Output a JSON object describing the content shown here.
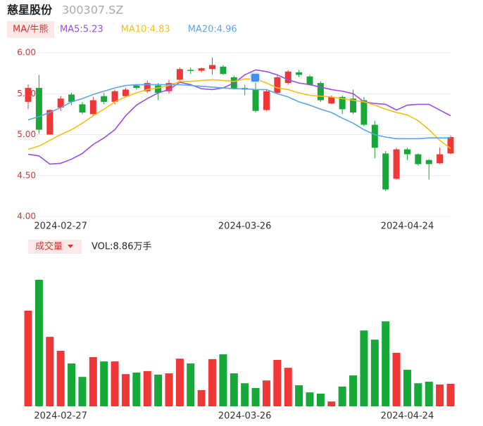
{
  "chart_data": {
    "type": "candlestick",
    "title": "慈星股份",
    "subtitle": "300307.SZ",
    "ma_button": "MA/牛熊",
    "up_color": "#f03737",
    "down_color": "#17a83a",
    "grid": true,
    "categories": [
      null,
      null,
      null,
      "2024-02-27",
      null,
      null,
      null,
      null,
      null,
      null,
      null,
      null,
      null,
      null,
      null,
      null,
      null,
      null,
      null,
      null,
      "2024-03-26",
      null,
      null,
      null,
      null,
      null,
      null,
      null,
      null,
      null,
      null,
      null,
      null,
      null,
      null,
      "2024-04-24",
      null,
      null,
      null,
      null
    ],
    "open": [
      5.4,
      5.57,
      5.0,
      5.33,
      5.49,
      5.37,
      5.25,
      5.47,
      5.4,
      5.47,
      5.6,
      5.53,
      5.6,
      5.53,
      5.67,
      5.79,
      5.78,
      5.8,
      5.83,
      5.7,
      5.57,
      5.55,
      5.3,
      5.51,
      5.63,
      5.76,
      5.71,
      5.63,
      5.38,
      5.46,
      5.44,
      5.42,
      5.12,
      4.77,
      4.46,
      4.82,
      4.76,
      4.69,
      4.65,
      4.77
    ],
    "high": [
      5.61,
      5.73,
      5.31,
      5.47,
      5.51,
      5.4,
      5.46,
      5.51,
      5.55,
      5.57,
      5.61,
      5.66,
      5.63,
      5.67,
      5.82,
      5.82,
      5.82,
      5.94,
      5.85,
      5.72,
      5.61,
      5.7,
      5.55,
      5.73,
      5.79,
      5.79,
      5.73,
      5.65,
      5.48,
      5.48,
      5.55,
      5.46,
      5.17,
      4.8,
      4.84,
      4.84,
      4.77,
      4.7,
      4.84,
      4.99
    ],
    "low": [
      5.31,
      5.01,
      5.0,
      5.29,
      5.36,
      5.25,
      5.23,
      5.37,
      5.37,
      5.46,
      5.55,
      5.51,
      5.42,
      5.5,
      5.66,
      5.74,
      5.76,
      5.73,
      5.73,
      5.55,
      5.48,
      5.27,
      5.29,
      5.49,
      5.61,
      5.7,
      5.6,
      5.4,
      5.37,
      5.25,
      5.25,
      5.1,
      4.71,
      4.31,
      4.45,
      4.69,
      4.62,
      4.45,
      4.64,
      4.76
    ],
    "close": [
      5.57,
      5.06,
      5.3,
      5.44,
      5.4,
      5.27,
      5.42,
      5.4,
      5.53,
      5.55,
      5.57,
      5.63,
      5.51,
      5.63,
      5.8,
      5.78,
      5.81,
      5.85,
      5.74,
      5.56,
      5.55,
      5.29,
      5.53,
      5.7,
      5.77,
      5.73,
      5.61,
      5.42,
      5.46,
      5.31,
      5.27,
      5.12,
      4.84,
      4.33,
      4.82,
      4.76,
      4.64,
      4.64,
      4.76,
      4.97
    ],
    "series": [
      {
        "name": "MA5:5.23",
        "color": "#9a4ee6",
        "values": [
          4.76,
          4.74,
          4.64,
          4.65,
          4.7,
          4.77,
          4.88,
          4.96,
          5.06,
          5.23,
          5.36,
          5.44,
          5.51,
          5.55,
          5.64,
          5.61,
          5.56,
          5.55,
          5.57,
          5.63,
          5.73,
          5.79,
          5.77,
          5.73,
          5.67,
          5.63,
          5.61,
          5.58,
          5.55,
          5.53,
          5.5,
          5.4,
          5.38,
          5.37,
          5.3,
          5.36,
          5.37,
          5.37,
          5.3,
          5.23
        ]
      },
      {
        "name": "MA10:4.83",
        "color": "#f4c016",
        "values": [
          4.82,
          4.86,
          4.93,
          5.0,
          5.06,
          5.14,
          5.23,
          5.31,
          5.4,
          5.46,
          5.51,
          5.55,
          5.57,
          5.6,
          5.65,
          5.65,
          5.66,
          5.67,
          5.66,
          5.65,
          5.68,
          5.68,
          5.63,
          5.57,
          5.55,
          5.51,
          5.48,
          5.47,
          5.46,
          5.44,
          5.42,
          5.4,
          5.36,
          5.31,
          5.27,
          5.24,
          5.17,
          5.06,
          4.93,
          4.83
        ]
      },
      {
        "name": "MA20:4.96",
        "color": "#5ba5ee",
        "values": [
          5.18,
          5.22,
          5.27,
          5.33,
          5.4,
          5.44,
          5.49,
          5.53,
          5.57,
          5.6,
          5.61,
          5.61,
          5.61,
          5.61,
          5.61,
          5.6,
          5.59,
          5.58,
          5.57,
          5.56,
          5.56,
          5.55,
          5.55,
          5.5,
          5.46,
          5.4,
          5.36,
          5.31,
          5.27,
          5.2,
          5.14,
          5.06,
          5.0,
          4.97,
          4.95,
          4.95,
          4.95,
          4.96,
          4.96,
          4.96
        ]
      }
    ],
    "ylim": [
      4,
      6
    ],
    "yticks": [
      {
        "value": 4,
        "label": "4.00"
      },
      {
        "value": 4.5,
        "label": "4.50"
      },
      {
        "value": 5,
        "label": "5.00"
      },
      {
        "value": 5.5,
        "label": "5.50"
      },
      {
        "value": 6,
        "label": "6.00"
      }
    ],
    "volume": {
      "button": "成交量",
      "label": "VOL:8.86万手",
      "values": [
        37.7,
        49.9,
        27.4,
        21.9,
        16.9,
        11.6,
        19.4,
        17.7,
        17.7,
        12.7,
        13.3,
        13.9,
        12.5,
        13.0,
        18.8,
        16.9,
        6.4,
        18.6,
        20.5,
        13.0,
        9.1,
        7.2,
        10.2,
        18.3,
        15.2,
        8.3,
        5.5,
        5.0,
        1.9,
        7.8,
        12.2,
        29.9,
        26.3,
        33.5,
        21.1,
        14.4,
        9.1,
        9.7,
        8.6,
        8.86
      ]
    }
  }
}
